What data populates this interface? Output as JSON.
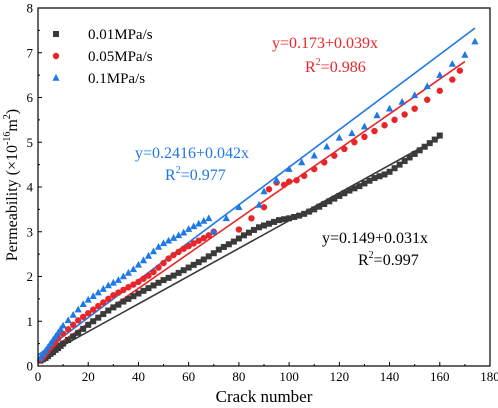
{
  "chart_data": {
    "type": "scatter",
    "xlabel": "Crack number",
    "ylabel": "Permeability (×10",
    "ylabel_sup": "-16",
    "ylabel_tail": "m",
    "ylabel_sup2": "2",
    "ylabel_close": ")",
    "xlim": [
      0,
      180
    ],
    "ylim": [
      0,
      8
    ],
    "xticks": [
      0,
      20,
      40,
      60,
      80,
      100,
      120,
      140,
      160,
      180
    ],
    "yticks": [
      0,
      1,
      2,
      3,
      4,
      5,
      6,
      7,
      8
    ],
    "legend_position": "top-left",
    "series": [
      {
        "name": "0.01MPa/s",
        "color": "#3a3a3a",
        "marker": "square",
        "fit": {
          "intercept": 0.149,
          "slope": 0.031,
          "x_end": 160
        },
        "fit_label": "y=0.149+0.031x",
        "r2_label": "R",
        "r2_sup": "2",
        "r2_value": "=0.997",
        "x": [
          1,
          2,
          3,
          4,
          5,
          6,
          7,
          8,
          9,
          10,
          12,
          14,
          16,
          18,
          20,
          22,
          24,
          26,
          28,
          30,
          32,
          34,
          36,
          38,
          40,
          42,
          44,
          46,
          48,
          50,
          52,
          54,
          56,
          58,
          60,
          62,
          64,
          66,
          68,
          70,
          72,
          74,
          76,
          78,
          80,
          82,
          84,
          86,
          88,
          90,
          92,
          94,
          96,
          98,
          100,
          102,
          104,
          106,
          108,
          110,
          112,
          114,
          116,
          118,
          120,
          122,
          124,
          126,
          128,
          130,
          132,
          134,
          136,
          138,
          140,
          142,
          144,
          146,
          148,
          150,
          152,
          154,
          156,
          158,
          160
        ],
        "y": [
          0.12,
          0.15,
          0.18,
          0.22,
          0.27,
          0.31,
          0.36,
          0.4,
          0.45,
          0.5,
          0.58,
          0.66,
          0.74,
          0.83,
          0.92,
          1.0,
          1.08,
          1.16,
          1.24,
          1.31,
          1.37,
          1.44,
          1.5,
          1.56,
          1.62,
          1.68,
          1.74,
          1.8,
          1.86,
          1.92,
          1.97,
          2.02,
          2.08,
          2.14,
          2.2,
          2.26,
          2.32,
          2.38,
          2.45,
          2.52,
          2.6,
          2.66,
          2.72,
          2.78,
          2.85,
          2.92,
          2.98,
          3.04,
          3.1,
          3.14,
          3.18,
          3.22,
          3.26,
          3.28,
          3.3,
          3.33,
          3.36,
          3.4,
          3.45,
          3.5,
          3.56,
          3.62,
          3.68,
          3.74,
          3.8,
          3.86,
          3.92,
          3.97,
          4.02,
          4.08,
          4.14,
          4.2,
          4.24,
          4.28,
          4.34,
          4.42,
          4.5,
          4.58,
          4.66,
          4.74,
          4.82,
          4.9,
          4.98,
          5.06,
          5.15
        ]
      },
      {
        "name": "0.05MPa/s",
        "color": "#e8262a",
        "marker": "circle",
        "fit": {
          "intercept": 0.173,
          "slope": 0.039,
          "x_end": 170
        },
        "fit_label": "y=0.173+0.039x",
        "r2_label": "R",
        "r2_sup": "2",
        "r2_value": "=0.986",
        "x": [
          1,
          2,
          3,
          4,
          5,
          6,
          7,
          8,
          10,
          12,
          14,
          16,
          18,
          20,
          22,
          24,
          26,
          28,
          30,
          32,
          34,
          36,
          38,
          40,
          42,
          44,
          46,
          48,
          50,
          52,
          54,
          56,
          58,
          60,
          62,
          64,
          66,
          68,
          70,
          80,
          85,
          90,
          92,
          95,
          98,
          100,
          103,
          106,
          110,
          114,
          118,
          122,
          126,
          130,
          134,
          138,
          142,
          146,
          150,
          155,
          160,
          165,
          168
        ],
        "y": [
          0.15,
          0.2,
          0.28,
          0.35,
          0.42,
          0.48,
          0.55,
          0.62,
          0.72,
          0.82,
          0.92,
          1.02,
          1.1,
          1.18,
          1.26,
          1.34,
          1.42,
          1.5,
          1.58,
          1.64,
          1.7,
          1.76,
          1.82,
          1.88,
          1.95,
          2.02,
          2.1,
          2.2,
          2.3,
          2.4,
          2.48,
          2.55,
          2.62,
          2.68,
          2.74,
          2.8,
          2.86,
          2.92,
          3.0,
          3.05,
          3.3,
          3.55,
          3.95,
          4.1,
          4.05,
          4.12,
          4.15,
          4.25,
          4.4,
          4.55,
          4.7,
          4.85,
          5.0,
          5.12,
          5.25,
          5.38,
          5.5,
          5.62,
          5.75,
          5.95,
          6.15,
          6.4,
          6.6
        ]
      },
      {
        "name": "0.1MPa/s",
        "color": "#1e78e6",
        "marker": "triangle",
        "fit": {
          "intercept": 0.2416,
          "slope": 0.042,
          "x_end": 174
        },
        "fit_label": "y=0.2416+0.042x",
        "r2_label": "R",
        "r2_sup": "2",
        "r2_value": "=0.977",
        "x": [
          1,
          2,
          3,
          4,
          5,
          6,
          7,
          8,
          9,
          10,
          12,
          14,
          16,
          18,
          20,
          22,
          24,
          26,
          28,
          30,
          32,
          34,
          36,
          38,
          40,
          42,
          44,
          46,
          48,
          50,
          52,
          54,
          56,
          58,
          60,
          62,
          64,
          66,
          68,
          70,
          75,
          80,
          88,
          90,
          95,
          100,
          105,
          110,
          115,
          120,
          125,
          130,
          135,
          140,
          145,
          150,
          155,
          160,
          165,
          170,
          174
        ],
        "y": [
          0.18,
          0.26,
          0.34,
          0.42,
          0.5,
          0.58,
          0.66,
          0.74,
          0.82,
          0.9,
          1.02,
          1.14,
          1.26,
          1.38,
          1.48,
          1.56,
          1.64,
          1.72,
          1.8,
          1.86,
          1.92,
          2.0,
          2.08,
          2.16,
          2.26,
          2.36,
          2.46,
          2.56,
          2.66,
          2.74,
          2.8,
          2.86,
          2.92,
          2.98,
          3.06,
          3.12,
          3.18,
          3.24,
          3.3,
          3.0,
          3.3,
          3.55,
          3.6,
          3.9,
          4.15,
          4.4,
          4.55,
          4.7,
          4.9,
          5.1,
          5.2,
          5.35,
          5.6,
          5.75,
          5.9,
          6.05,
          6.25,
          6.5,
          6.75,
          6.95,
          7.25
        ]
      }
    ]
  }
}
